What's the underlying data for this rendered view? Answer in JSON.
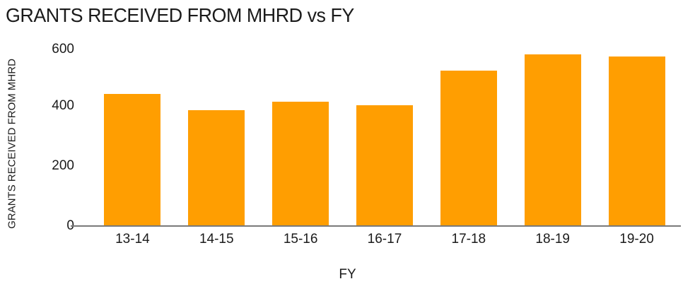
{
  "chart_data": {
    "type": "bar",
    "title": "GRANTS RECEIVED FROM MHRD vs FY",
    "xlabel": "FY",
    "ylabel": "GRANTS RECEIVED FROM MHRD",
    "categories": [
      "13-14",
      "14-15",
      "15-16",
      "16-17",
      "17-18",
      "18-19",
      "19-20"
    ],
    "values": [
      440,
      386,
      414,
      402,
      517,
      571,
      564
    ],
    "y_ticks": [
      0,
      200,
      400,
      600
    ],
    "ylim": [
      0,
      609
    ],
    "grid": false,
    "legend": "none",
    "bar_color": "#FF9E01",
    "axis_color": "#7a7a7a",
    "text_color": "#1b1b1b",
    "background_color": "#ffffff"
  }
}
